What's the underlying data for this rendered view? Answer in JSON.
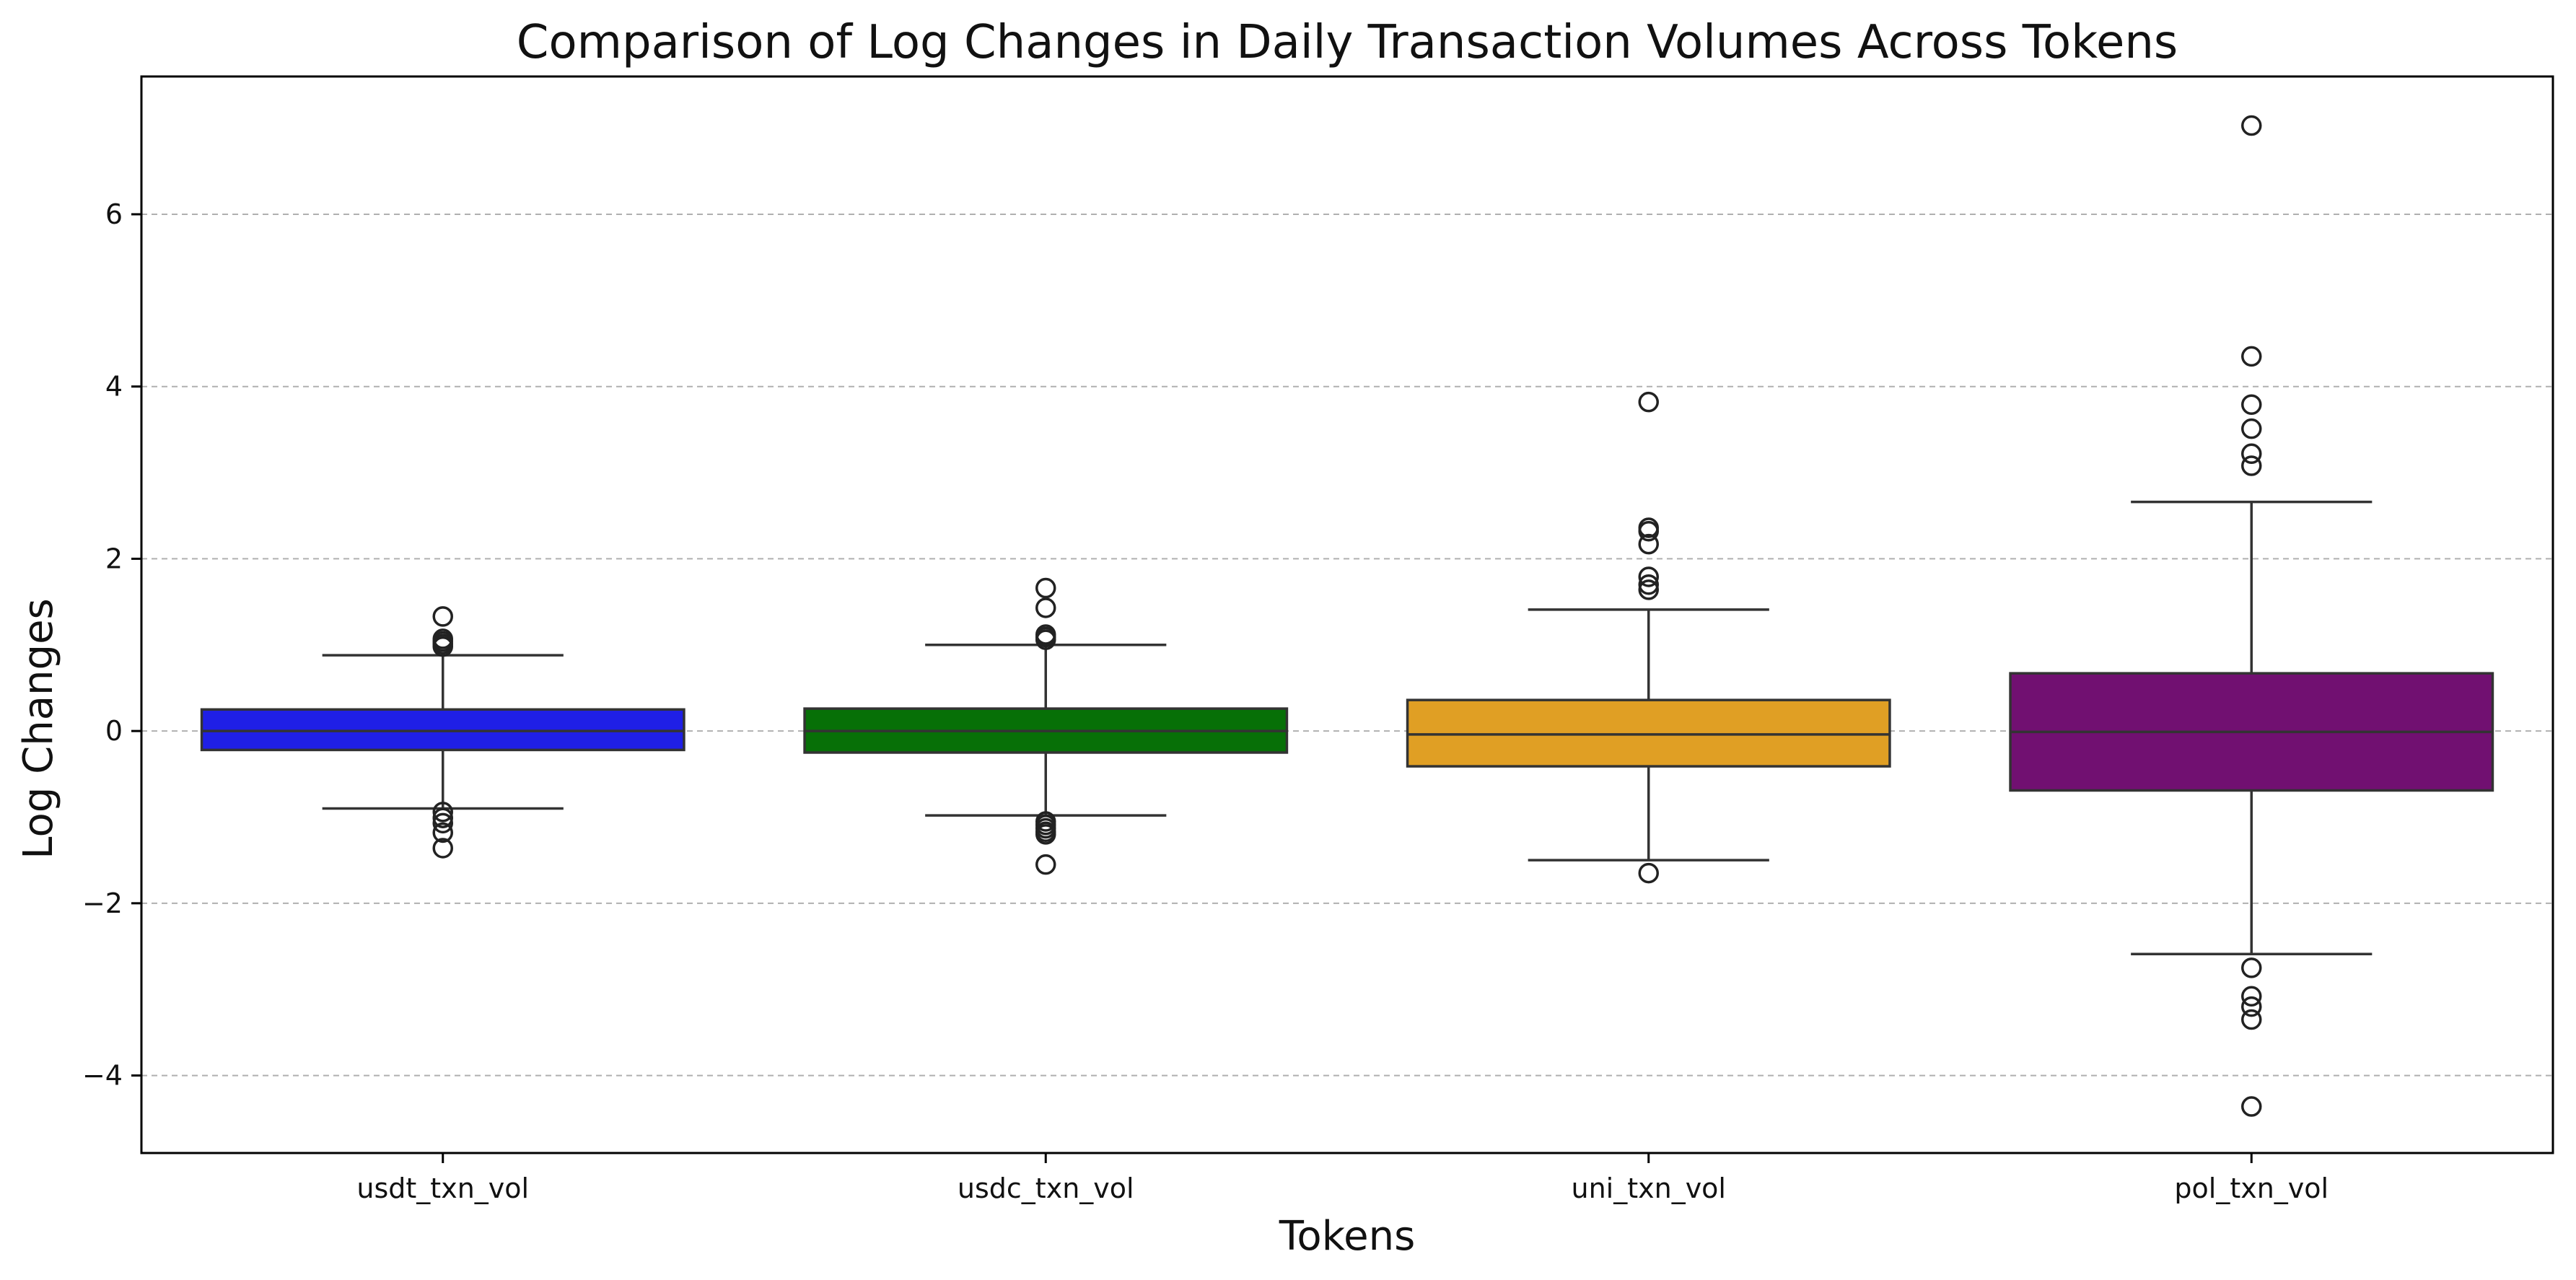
{
  "chart_data": {
    "type": "box",
    "title": "Comparison of Log Changes in Daily Transaction Volumes Across Tokens",
    "xlabel": "Tokens",
    "ylabel": "Log Changes",
    "ylim": [
      -4.9,
      7.6
    ],
    "yticks": [
      -4,
      -2,
      0,
      2,
      4,
      6
    ],
    "grid": "y-dashed",
    "series": [
      {
        "category": "usdt_txn_vol",
        "color": "#1f1fe6",
        "q1": -0.22,
        "median": 0.0,
        "q3": 0.25,
        "whisker_low": -0.9,
        "whisker_high": 0.88,
        "outliers": [
          1.33,
          1.07,
          1.04,
          1.01,
          0.98,
          -0.94,
          -1.01,
          -1.07,
          -1.18,
          -1.36
        ]
      },
      {
        "category": "usdc_txn_vol",
        "color": "#077007",
        "q1": -0.25,
        "median": 0.0,
        "q3": 0.26,
        "whisker_low": -0.98,
        "whisker_high": 1.0,
        "outliers": [
          1.66,
          1.43,
          1.12,
          1.09,
          1.06,
          -1.05,
          -1.09,
          -1.13,
          -1.17,
          -1.2,
          -1.55
        ]
      },
      {
        "category": "uni_txn_vol",
        "color": "#e09f24",
        "q1": -0.41,
        "median": -0.04,
        "q3": 0.36,
        "whisker_low": -1.5,
        "whisker_high": 1.41,
        "outliers": [
          3.82,
          2.36,
          2.32,
          2.17,
          1.79,
          1.7,
          1.64,
          -1.65
        ]
      },
      {
        "category": "pol_txn_vol",
        "color": "#711071",
        "q1": -0.69,
        "median": -0.01,
        "q3": 0.67,
        "whisker_low": -2.59,
        "whisker_high": 2.66,
        "outliers": [
          7.03,
          4.35,
          3.79,
          3.51,
          3.22,
          3.08,
          -2.75,
          -3.08,
          -3.2,
          -3.35,
          -4.36
        ]
      }
    ]
  }
}
